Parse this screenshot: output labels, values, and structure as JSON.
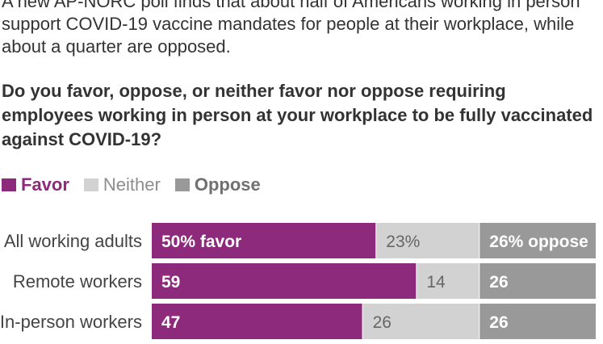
{
  "intro_text": "A new AP-NORC poll finds that about half of Americans working in person support COVID-19 vaccine mandates for people at their workplace, while about a quarter are opposed.",
  "question": "Do you favor, oppose, or neither favor nor oppose requiring employees working in person at your workplace to be fully vaccinated against COVID-19?",
  "legend": [
    {
      "label": "Favor",
      "color": "#8e2a7c"
    },
    {
      "label": "Neither",
      "color": "#d2d2d2"
    },
    {
      "label": "Oppose",
      "color": "#999999"
    }
  ],
  "chart_data": {
    "type": "bar",
    "orientation": "horizontal",
    "stacked": true,
    "categories": [
      "All working adults",
      "Remote workers",
      "In-person workers"
    ],
    "series": [
      {
        "name": "Favor",
        "values": [
          50,
          59,
          47
        ],
        "labels": [
          "50% favor",
          "59",
          "47"
        ],
        "color": "#8e2a7c"
      },
      {
        "name": "Neither",
        "values": [
          23,
          14,
          26
        ],
        "labels": [
          "23%",
          "14",
          "26"
        ],
        "color": "#d2d2d2"
      },
      {
        "name": "Oppose",
        "values": [
          26,
          26,
          26
        ],
        "labels": [
          "26% oppose",
          "26",
          "26"
        ],
        "color": "#999999"
      }
    ],
    "xlim": [
      0,
      100
    ],
    "grid": false
  }
}
